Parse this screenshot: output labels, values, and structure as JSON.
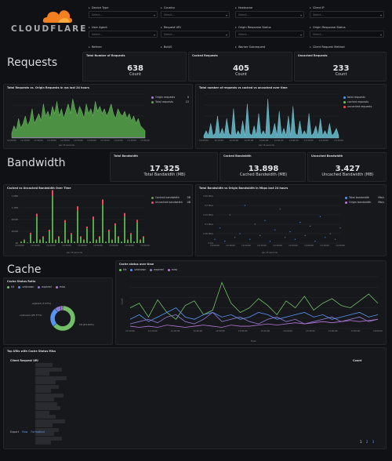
{
  "brand": {
    "name": "CLOUDFLARE",
    "accent": "#f38020"
  },
  "variables": [
    {
      "label": "Device Type",
      "placeholder": "Select..."
    },
    {
      "label": "Country",
      "placeholder": "Select..."
    },
    {
      "label": "Hostname",
      "placeholder": "Select..."
    },
    {
      "label": "Client IP",
      "placeholder": "Select..."
    },
    {
      "label": "User Agent",
      "placeholder": "Select..."
    },
    {
      "label": "Request URI",
      "placeholder": "Select..."
    },
    {
      "label": "Origin Response Status",
      "placeholder": "Select..."
    },
    {
      "label": "Origin Response Status",
      "placeholder": "Select..."
    },
    {
      "label": "Referer",
      "placeholder": ""
    },
    {
      "label": "Bot/IS",
      "placeholder": ""
    },
    {
      "label": "Worker Subrequest",
      "placeholder": ""
    },
    {
      "label": "Client Request Method",
      "placeholder": ""
    }
  ],
  "requests": {
    "title": "Requests",
    "total": {
      "title": "Total Number of Requests",
      "value": "638",
      "unit": "Count"
    },
    "cached": {
      "title": "Cached Requests",
      "value": "405",
      "unit": "Count"
    },
    "uncached": {
      "title": "Uncached Requests",
      "value": "233",
      "unit": "Count"
    },
    "chart1": {
      "title": "Total Requests vs. Origin Requests in rps last 24 hours",
      "xlabel": "per 15 seconds",
      "ticks": [
        "12:00:00",
        "12:10:00",
        "12:20:00",
        "12:30:00",
        "12:40:00",
        "12:50:00",
        "13:00:00",
        "13:10:00",
        "13:20:00",
        "13:30:00",
        "13:40:00"
      ],
      "legend": [
        {
          "name": "Origin requests",
          "value": "0",
          "color": "#b877d9"
        },
        {
          "name": "Total requests",
          "value": "15",
          "color": "#56a64b"
        }
      ]
    },
    "chart2": {
      "title": "Total number of requests vs cached vs uncached over time",
      "xlabel": "per 15 seconds",
      "ticks": [
        "12:00:00",
        "12:10:00",
        "12:20:00",
        "12:30:00",
        "12:40:00",
        "12:50:00",
        "13:00:00",
        "13:10:00",
        "13:20:00",
        "13:30:00"
      ],
      "legend": [
        {
          "name": "total requests",
          "color": "#5794f2"
        },
        {
          "name": "cached requests",
          "color": "#73bf69"
        },
        {
          "name": "uncached requests",
          "color": "#f2495c"
        }
      ]
    }
  },
  "bandwidth": {
    "title": "Bandwidth",
    "total": {
      "title": "Total Bandwidth",
      "value": "17.325",
      "unit": "Total Bandwidth (MB)"
    },
    "cached": {
      "title": "Cached Bandwidth",
      "value": "13.898",
      "unit": "Cached Bandwidth (MB)"
    },
    "uncached": {
      "title": "Uncached Bandwidth",
      "value": "3.427",
      "unit": "Uncached Bandwidth (MB)"
    },
    "chart1": {
      "title": "Cached vs Uncached Bandwidth Over Time",
      "xlabel": "per 15 seconds",
      "yticks": [
        "1.6MB",
        "1.2MB",
        "800kB",
        "400kB",
        "0B"
      ],
      "ticks": [
        "12:00:00",
        "12:10:00",
        "12:20:00",
        "12:30:00",
        "12:40:00",
        "12:50:00",
        "13:00:00",
        "13:10:00",
        "13:20:00"
      ],
      "legend": [
        {
          "name": "Cached bandwidth",
          "value": "0B",
          "color": "#56a64b"
        },
        {
          "name": "Uncached bandwidth",
          "value": "0B",
          "color": "#f2495c"
        }
      ]
    },
    "chart2": {
      "title": "Total Bandwidth vs Origin Bandwidth in Mbps last 24 hours",
      "xlabel": "per 15 seconds",
      "yticks": [
        "0.25 Mb/s",
        "0.2 Mb/s",
        "0.15 Mb/s",
        "0.1 Mb/s",
        "0.05 Mb/s",
        "0 b/s"
      ],
      "ticks": [
        "12:00:00",
        "12:10:00",
        "12:20:00",
        "12:30:00",
        "12:40:00",
        "12:50:00",
        "13:00:00",
        "13:10:00",
        "13:20:00"
      ],
      "legend": [
        {
          "name": "Total bandwidth",
          "value": "Mb/s",
          "color": "#5794f2"
        },
        {
          "name": "Origin bandwidth",
          "value": "Mb/s",
          "color": "#b877d9"
        }
      ]
    }
  },
  "cache": {
    "title": "Cache",
    "ratio": {
      "title": "Cache Status Ratio",
      "legend": [
        {
          "name": "hit",
          "color": "#73bf69"
        },
        {
          "name": "unknown",
          "color": "#5794f2"
        },
        {
          "name": "expired",
          "color": "#8f7bd3"
        },
        {
          "name": "miss",
          "color": "#b877d9"
        }
      ],
      "labels": {
        "expired": "expired (7.57%)",
        "unknown": "unknown (25.77%)",
        "hit": "hit (63.64%)"
      }
    },
    "overtime": {
      "title": "Cache status over time",
      "xlabel": "Time",
      "ylabel": "Count",
      "legend": [
        {
          "name": "hit",
          "color": "#73bf69"
        },
        {
          "name": "unknown",
          "color": "#5794f2"
        },
        {
          "name": "expired",
          "color": "#8f7bd3"
        },
        {
          "name": "miss",
          "color": "#b877d9"
        }
      ],
      "ticks": [
        "12:10:00",
        "12:20:00",
        "12:30:00",
        "12:40:00",
        "12:50:00",
        "13:00:00",
        "13:10:00",
        "13:20:00",
        "13:30:00",
        "13:40:00",
        "13:50:00",
        "14:00:00"
      ]
    }
  },
  "table": {
    "title": "Top URIs with Cache Status Miss",
    "col1": "Client Request URI",
    "col2": "Count",
    "export_label": "Export",
    "export_raw": "Raw",
    "export_formatted": "Formatted",
    "pages": [
      "1",
      "2",
      "3"
    ]
  },
  "chart_data": [
    {
      "type": "area",
      "title": "Total Requests vs. Origin Requests in rps last 24 hours",
      "xlabel": "per 15 seconds",
      "series": [
        {
          "name": "Total requests",
          "values": [
            2,
            5,
            3,
            8,
            4,
            6,
            9,
            5,
            7,
            12,
            6,
            8,
            10,
            7,
            14,
            9,
            11,
            8,
            13,
            10,
            15,
            9,
            12,
            8,
            11,
            14,
            10,
            16,
            12,
            9,
            13,
            11,
            8,
            14,
            10,
            12,
            9,
            15,
            11,
            13,
            10,
            12,
            9,
            11,
            14,
            10,
            8,
            12,
            10,
            9,
            11,
            8,
            10,
            7,
            9,
            6,
            8,
            5,
            4,
            3
          ]
        },
        {
          "name": "Origin requests",
          "values": [
            0,
            0,
            0,
            0,
            0,
            0,
            0,
            0,
            0,
            0,
            0,
            0,
            0,
            0,
            0,
            0,
            0,
            0,
            0,
            0,
            0,
            0,
            0,
            0,
            0,
            0,
            0,
            0,
            0,
            0,
            0,
            0,
            0,
            0,
            0,
            0,
            0,
            0,
            0,
            0,
            0,
            0,
            0,
            0,
            0,
            0,
            0,
            0,
            0,
            0,
            0,
            0,
            0,
            0,
            0,
            0,
            0,
            0,
            0,
            0
          ]
        }
      ]
    },
    {
      "type": "area",
      "title": "Total number of requests vs cached vs uncached over time",
      "xlabel": "per 15 seconds",
      "series": [
        {
          "name": "total requests",
          "values": [
            1,
            3,
            1,
            6,
            1,
            2,
            9,
            1,
            4,
            1,
            8,
            2,
            1,
            12,
            1,
            3,
            1,
            7,
            1,
            14,
            2,
            1,
            5,
            1,
            10,
            1,
            3,
            1,
            16,
            1,
            2,
            6,
            1,
            11,
            1,
            4,
            1,
            9,
            1,
            13,
            2,
            1,
            7,
            1,
            3,
            1,
            10,
            1,
            2,
            5,
            1,
            8,
            1,
            3,
            1,
            6,
            1,
            2,
            4,
            1
          ]
        },
        {
          "name": "cached requests",
          "values": []
        },
        {
          "name": "uncached requests",
          "values": []
        }
      ]
    },
    {
      "type": "bar",
      "title": "Cached vs Uncached Bandwidth Over Time",
      "xlabel": "per 15 seconds",
      "series": [
        {
          "name": "Cached bandwidth",
          "values": [
            0.05,
            0.1,
            0.02,
            0.3,
            0.05,
            0.9,
            0.1,
            0.2,
            0.05,
            0.4,
            1.6,
            0.1,
            0.2,
            0.05,
            0.7,
            0.1,
            0.3,
            0.05,
            1.1,
            0.2,
            0.1,
            0.5,
            0.05,
            0.8,
            0.1,
            0.2,
            1.3,
            0.05,
            0.4,
            0.1,
            0.6,
            0.2,
            0.05,
            0.9,
            0.1,
            0.3,
            0.05,
            0.7,
            0.1,
            0.2
          ]
        },
        {
          "name": "Uncached bandwidth",
          "values": [
            0,
            0.02,
            0,
            0.05,
            0,
            0.1,
            0.02,
            0.03,
            0,
            0.05,
            0.2,
            0.02,
            0.03,
            0,
            0.08,
            0.02,
            0.04,
            0,
            0.15,
            0.03,
            0.02,
            0.06,
            0,
            0.1,
            0.02,
            0.03,
            0.18,
            0,
            0.05,
            0.02,
            0.07,
            0.03,
            0,
            0.12,
            0.02,
            0.04,
            0,
            0.09,
            0.02,
            0.03
          ]
        }
      ]
    },
    {
      "type": "scatter",
      "title": "Total Bandwidth vs Origin Bandwidth in Mbps last 24 hours",
      "xlabel": "per 15 seconds",
      "series": [
        {
          "name": "Total bandwidth",
          "values": [
            0.02,
            0.08,
            0.01,
            0.15,
            0.03,
            0.05,
            0.2,
            0.02,
            0.1,
            0.04,
            0.12,
            0.01,
            0.07,
            0.18,
            0.03,
            0.06,
            0.02,
            0.11,
            0.04,
            0.09,
            0.01,
            0.14,
            0.03,
            0.05,
            0.02,
            0.08
          ]
        },
        {
          "name": "Origin bandwidth",
          "values": []
        }
      ]
    },
    {
      "type": "pie",
      "title": "Cache Status Ratio",
      "categories": [
        "hit",
        "unknown",
        "expired",
        "miss"
      ],
      "values": [
        63.64,
        25.77,
        7.57,
        3.02
      ]
    },
    {
      "type": "line",
      "title": "Cache status over time",
      "xlabel": "Time",
      "ylabel": "Count",
      "series": [
        {
          "name": "hit",
          "values": [
            18,
            22,
            10,
            25,
            14,
            8,
            20,
            24,
            12,
            16,
            40,
            22,
            14,
            18,
            26,
            20,
            12,
            24,
            18,
            28,
            16,
            22,
            26,
            20,
            18,
            24,
            30,
            22
          ]
        },
        {
          "name": "unknown",
          "values": [
            8,
            12,
            6,
            10,
            14,
            18,
            10,
            8,
            12,
            14,
            10,
            12,
            8,
            10,
            14,
            12,
            8,
            10,
            12,
            14,
            10,
            12,
            8,
            10,
            12,
            14,
            10,
            12
          ]
        },
        {
          "name": "expired",
          "values": [
            4,
            6,
            8,
            5,
            10,
            12,
            6,
            4,
            8,
            14,
            6,
            8,
            10,
            6,
            4,
            8,
            10,
            6,
            8,
            4,
            6,
            8,
            10,
            6,
            8,
            10,
            6,
            8
          ]
        },
        {
          "name": "miss",
          "values": [
            2,
            1,
            2,
            1,
            3,
            2,
            1,
            2,
            3,
            2,
            1,
            3,
            2,
            2,
            3,
            4,
            3,
            4,
            5,
            4,
            5,
            6,
            5,
            6,
            7,
            6,
            7,
            8
          ]
        }
      ]
    }
  ]
}
